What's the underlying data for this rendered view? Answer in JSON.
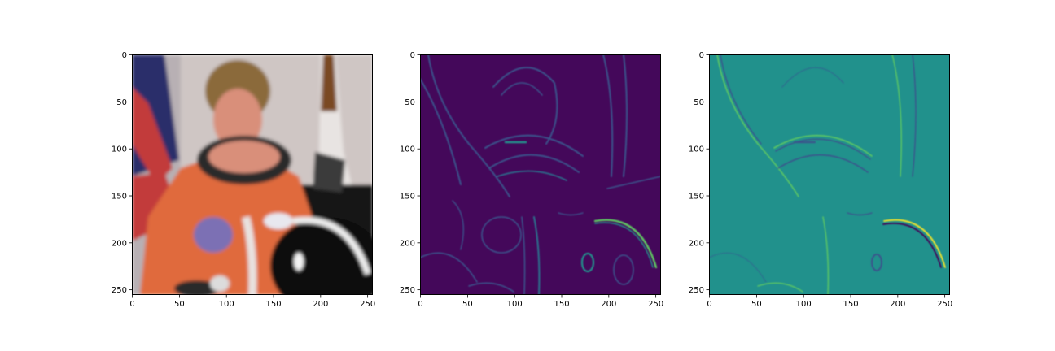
{
  "chart_data": [
    {
      "type": "image",
      "title": "",
      "xlabel": "",
      "ylabel": "",
      "image_shape": [
        256,
        256
      ],
      "xlim": [
        0,
        255
      ],
      "ylim": [
        255,
        0
      ],
      "xticks": [
        0,
        50,
        100,
        150,
        200,
        250
      ],
      "yticks": [
        0,
        50,
        100,
        150,
        200,
        250
      ],
      "content": "color photograph",
      "palette": {
        "background": "#cfc6c4",
        "suit": "#e06a3c",
        "hair": "#8b6a3a",
        "helmet": "#101010",
        "flag_red": "#c23a3a",
        "flag_blue": "#2b2f6b"
      }
    },
    {
      "type": "heatmap",
      "title": "",
      "xlabel": "",
      "ylabel": "",
      "image_shape": [
        256,
        256
      ],
      "xlim": [
        0,
        255
      ],
      "ylim": [
        255,
        0
      ],
      "xticks": [
        0,
        50,
        100,
        150,
        200,
        250
      ],
      "yticks": [
        0,
        50,
        100,
        150,
        200,
        250
      ],
      "colormap": "viridis",
      "content": "edge magnitude",
      "palette": {
        "background": "#44085a",
        "edge_low": "#3b528b",
        "edge_mid": "#21918c",
        "edge_high": "#5ec962"
      }
    },
    {
      "type": "heatmap",
      "title": "",
      "xlabel": "",
      "ylabel": "",
      "image_shape": [
        256,
        256
      ],
      "xlim": [
        0,
        255
      ],
      "ylim": [
        255,
        0
      ],
      "xticks": [
        0,
        50,
        100,
        150,
        200,
        250
      ],
      "yticks": [
        0,
        50,
        100,
        150,
        200,
        250
      ],
      "colormap": "viridis",
      "content": "signed edge response",
      "palette": {
        "background": "#21918c",
        "negative": "#3b528b",
        "positive": "#5ec962",
        "extreme_low": "#440154",
        "extreme_high": "#fde725"
      }
    }
  ]
}
